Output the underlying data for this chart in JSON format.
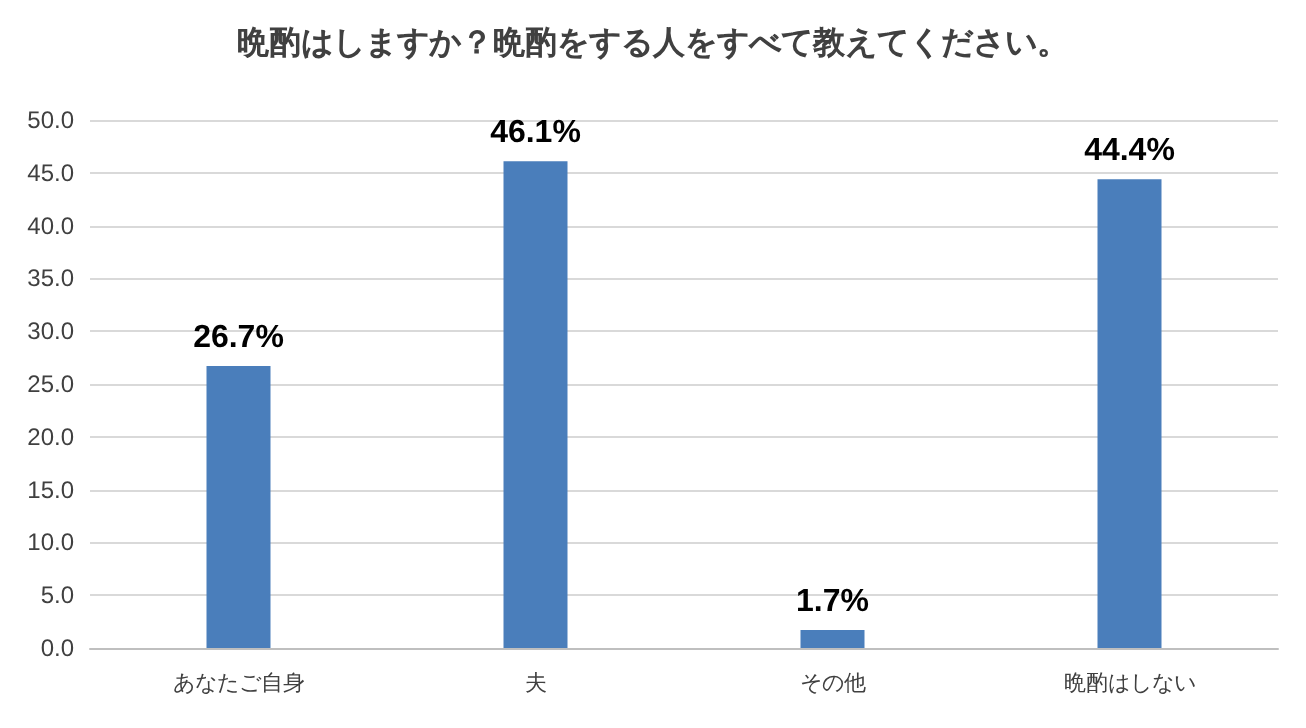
{
  "chart_data": {
    "type": "bar",
    "title": "晩酌はしますか？晩酌をする人をすべて教えてください。",
    "categories": [
      "あなたご自身",
      "夫",
      "その他",
      "晩酌はしない"
    ],
    "values": [
      26.7,
      46.1,
      1.7,
      44.4
    ],
    "value_labels": [
      "26.7%",
      "46.1%",
      "1.7%",
      "44.4%"
    ],
    "color": "#4a7ebb",
    "ylim": [
      0,
      50
    ],
    "yticks": [
      {
        "value": 0,
        "label": "0.0"
      },
      {
        "value": 5,
        "label": "5.0"
      },
      {
        "value": 10,
        "label": "10.0"
      },
      {
        "value": 15,
        "label": "15.0"
      },
      {
        "value": 20,
        "label": "20.0"
      },
      {
        "value": 25,
        "label": "25.0"
      },
      {
        "value": 30,
        "label": "30.0"
      },
      {
        "value": 35,
        "label": "35.0"
      },
      {
        "value": 40,
        "label": "40.0"
      },
      {
        "value": 45,
        "label": "45.0"
      },
      {
        "value": 50,
        "label": "50.0"
      }
    ],
    "grid": "y"
  }
}
